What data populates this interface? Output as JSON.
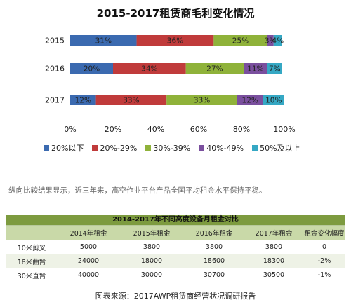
{
  "chart_data": {
    "type": "bar",
    "orientation": "horizontal",
    "stacked": true,
    "title": "2015-2017租赁商毛利变化情况",
    "categories": [
      "2015",
      "2016",
      "2017"
    ],
    "series": [
      {
        "name": "20%以下",
        "color": "#3b6ab0",
        "values": [
          31,
          20,
          12
        ]
      },
      {
        "name": "20%-29%",
        "color": "#c03b3b",
        "values": [
          36,
          34,
          33
        ]
      },
      {
        "name": "30%-39%",
        "color": "#8fb23a",
        "values": [
          25,
          27,
          33
        ]
      },
      {
        "name": "40%-49%",
        "color": "#7a4f9e",
        "values": [
          3,
          11,
          12
        ]
      },
      {
        "name": "50%及以上",
        "color": "#35a8c4",
        "values": [
          4,
          7,
          10
        ]
      }
    ],
    "data_labels": [
      [
        "31%",
        "36%",
        "25%",
        "3%",
        "4%"
      ],
      [
        "20%",
        "34%",
        "27%",
        "11%",
        "7%"
      ],
      [
        "12%",
        "33%",
        "33%",
        "12%",
        "10%"
      ]
    ],
    "xlim": [
      0,
      100
    ],
    "x_ticks": [
      "0%",
      "20%",
      "40%",
      "60%",
      "80%",
      "100%"
    ],
    "legend_position": "bottom",
    "grid": false
  },
  "note": "纵向比较结果显示，近三年来，高空作业平台产品全国平均租金水平保持平稳。",
  "table": {
    "title": "2014-2017年不同高度设备月租金对比",
    "headers": [
      "",
      "2014年租金",
      "2015年租金",
      "2016年租金",
      "2017年租金",
      "租金变化幅度"
    ],
    "rows": [
      [
        "10米剪叉",
        "5000",
        "3800",
        "3800",
        "3800",
        "0"
      ],
      [
        "18米曲臂",
        "24000",
        "18000",
        "18600",
        "18300",
        "-2%"
      ],
      [
        "30米直臂",
        "40000",
        "30000",
        "30700",
        "30500",
        "-1%"
      ]
    ]
  },
  "source": "图表来源：2017AWP租赁商经营状况调研报告"
}
